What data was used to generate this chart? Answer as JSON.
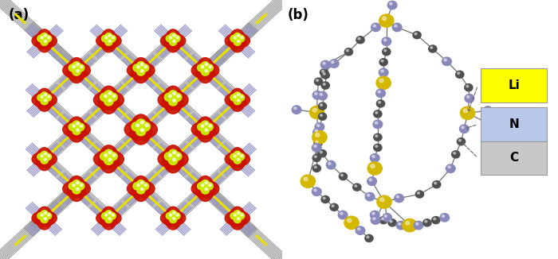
{
  "figure_width": 7.0,
  "figure_height": 3.26,
  "dpi": 100,
  "background_color": "#ffffff",
  "panel_a_label": "(a)",
  "panel_b_label": "(b)",
  "legend_items": [
    {
      "label": "Li",
      "color": "#ffff00",
      "text_color": "#000000"
    },
    {
      "label": "N",
      "color": "#b8c8e8",
      "text_color": "#000000"
    },
    {
      "label": "C",
      "color": "#c8c8c8",
      "text_color": "#000000"
    }
  ],
  "panel_a": {
    "gray_color": "#888888",
    "lavender_color": "#9898c8",
    "yellow_color": "#e8e000",
    "red_color": "#cc1100",
    "yellow_green": "#ccee00"
  },
  "panel_b": {
    "yellow_color": "#d4b800",
    "lavender_color": "#8888bb",
    "dark_gray": "#505050",
    "bond_color": "#707070"
  }
}
